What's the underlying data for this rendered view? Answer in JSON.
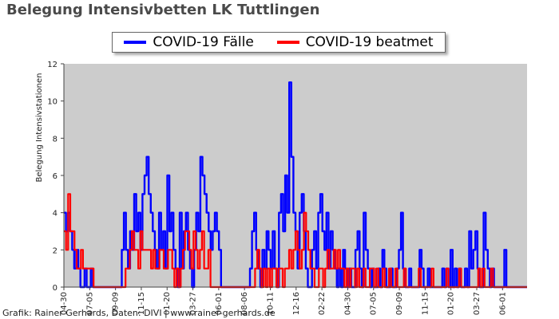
{
  "chart_data": {
    "type": "line",
    "title": "Belegung Intensivbetten LK Tuttlingen",
    "ylabel": "Belegung Intensivstationen",
    "xlabel": "",
    "ylim": [
      0,
      12
    ],
    "yticks": [
      "0",
      "2",
      "4",
      "6",
      "8",
      "10",
      "12"
    ],
    "x_tick_labels": [
      "04-30",
      "07-05",
      "09-09",
      "11-15",
      "01-20",
      "03-27",
      "06-01",
      "08-06",
      "10-11",
      "12-16",
      "02-22",
      "04-30",
      "07-05",
      "09-09",
      "11-15",
      "01-20",
      "03-27",
      "06-01"
    ],
    "grid": false,
    "legend_position": "top-center",
    "series": [
      {
        "name": "COVID-19 Fälle",
        "color": "#0000ff",
        "values": [
          4,
          3,
          4,
          3,
          2,
          1,
          2,
          1,
          0,
          0,
          1,
          0,
          0,
          1,
          0,
          0,
          0,
          0,
          0,
          0,
          0,
          0,
          0,
          0,
          0,
          0,
          0,
          0,
          2,
          4,
          2,
          1,
          3,
          2,
          5,
          3,
          4,
          2,
          5,
          6,
          7,
          5,
          4,
          3,
          2,
          1,
          4,
          2,
          3,
          1,
          6,
          3,
          4,
          2,
          1,
          0,
          4,
          1,
          3,
          4,
          2,
          1,
          0,
          2,
          4,
          3,
          7,
          6,
          5,
          4,
          3,
          2,
          3,
          4,
          3,
          2,
          0,
          0,
          0,
          0,
          0,
          0,
          0,
          0,
          0,
          0,
          0,
          0,
          0,
          0,
          1,
          3,
          4,
          2,
          1,
          0,
          2,
          1,
          3,
          2,
          1,
          3,
          1,
          0,
          4,
          5,
          3,
          6,
          4,
          11,
          7,
          4,
          3,
          1,
          4,
          5,
          3,
          1,
          0,
          0,
          2,
          3,
          1,
          4,
          5,
          3,
          2,
          4,
          1,
          3,
          2,
          1,
          0,
          1,
          0,
          2,
          1,
          0,
          1,
          0,
          0,
          2,
          3,
          1,
          0,
          4,
          2,
          1,
          0,
          1,
          0,
          0,
          1,
          0,
          2,
          1,
          0,
          0,
          1,
          0,
          0,
          1,
          2,
          4,
          1,
          0,
          0,
          1,
          0,
          0,
          0,
          0,
          2,
          1,
          0,
          0,
          1,
          0,
          0,
          0,
          0,
          0,
          0,
          1,
          0,
          1,
          0,
          2,
          0,
          1,
          0,
          1,
          0,
          0,
          1,
          0,
          3,
          1,
          2,
          3,
          1,
          0,
          0,
          4,
          2,
          1,
          0,
          1,
          0,
          0,
          0,
          0,
          0,
          2,
          0,
          0,
          0,
          0,
          0,
          0,
          0,
          0,
          0,
          0,
          0
        ]
      },
      {
        "name": "COVID-19 beatmet",
        "color": "#ff0000",
        "values": [
          3,
          2,
          5,
          3,
          3,
          2,
          1,
          1,
          2,
          1,
          1,
          1,
          1,
          1,
          0,
          0,
          0,
          0,
          0,
          0,
          0,
          0,
          0,
          0,
          0,
          0,
          0,
          0,
          0,
          1,
          1,
          2,
          3,
          2,
          2,
          1,
          3,
          2,
          2,
          2,
          2,
          1,
          2,
          1,
          1,
          2,
          2,
          1,
          1,
          2,
          2,
          1,
          0,
          1,
          0,
          1,
          2,
          3,
          3,
          2,
          1,
          3,
          2,
          1,
          2,
          3,
          1,
          1,
          2,
          0,
          0,
          0,
          0,
          0,
          0,
          0,
          0,
          0,
          0,
          0,
          0,
          0,
          0,
          0,
          0,
          0,
          0,
          0,
          0,
          0,
          1,
          2,
          1,
          0,
          1,
          0,
          1,
          0,
          1,
          1,
          0,
          1,
          1,
          0,
          1,
          1,
          2,
          1,
          2,
          3,
          2,
          1,
          2,
          4,
          3,
          2,
          1,
          1,
          0,
          0,
          1,
          1,
          0,
          1,
          2,
          1,
          1,
          2,
          1,
          2,
          1,
          1,
          0,
          1,
          0,
          1,
          1,
          0,
          1,
          0,
          0,
          1,
          0,
          0,
          1,
          1,
          0,
          1,
          0,
          0,
          1,
          0,
          0,
          1,
          0,
          0,
          1,
          0,
          0,
          0,
          1,
          0,
          0,
          0,
          0,
          0,
          0,
          1,
          0,
          0,
          0,
          0,
          0,
          1,
          0,
          0,
          0,
          0,
          0,
          0,
          1,
          0,
          0,
          0,
          0,
          0,
          1,
          0,
          0,
          0,
          0,
          0,
          0,
          0,
          0,
          1,
          0,
          1,
          0,
          0,
          0,
          1,
          0,
          0,
          0,
          0,
          0,
          0,
          0,
          0,
          0,
          0,
          0,
          0,
          0,
          0,
          0,
          0,
          0
        ]
      }
    ]
  },
  "credit": "Grafik: Rainer Gerhards, Daten: DIVI | www.rainer-gerhards.de"
}
